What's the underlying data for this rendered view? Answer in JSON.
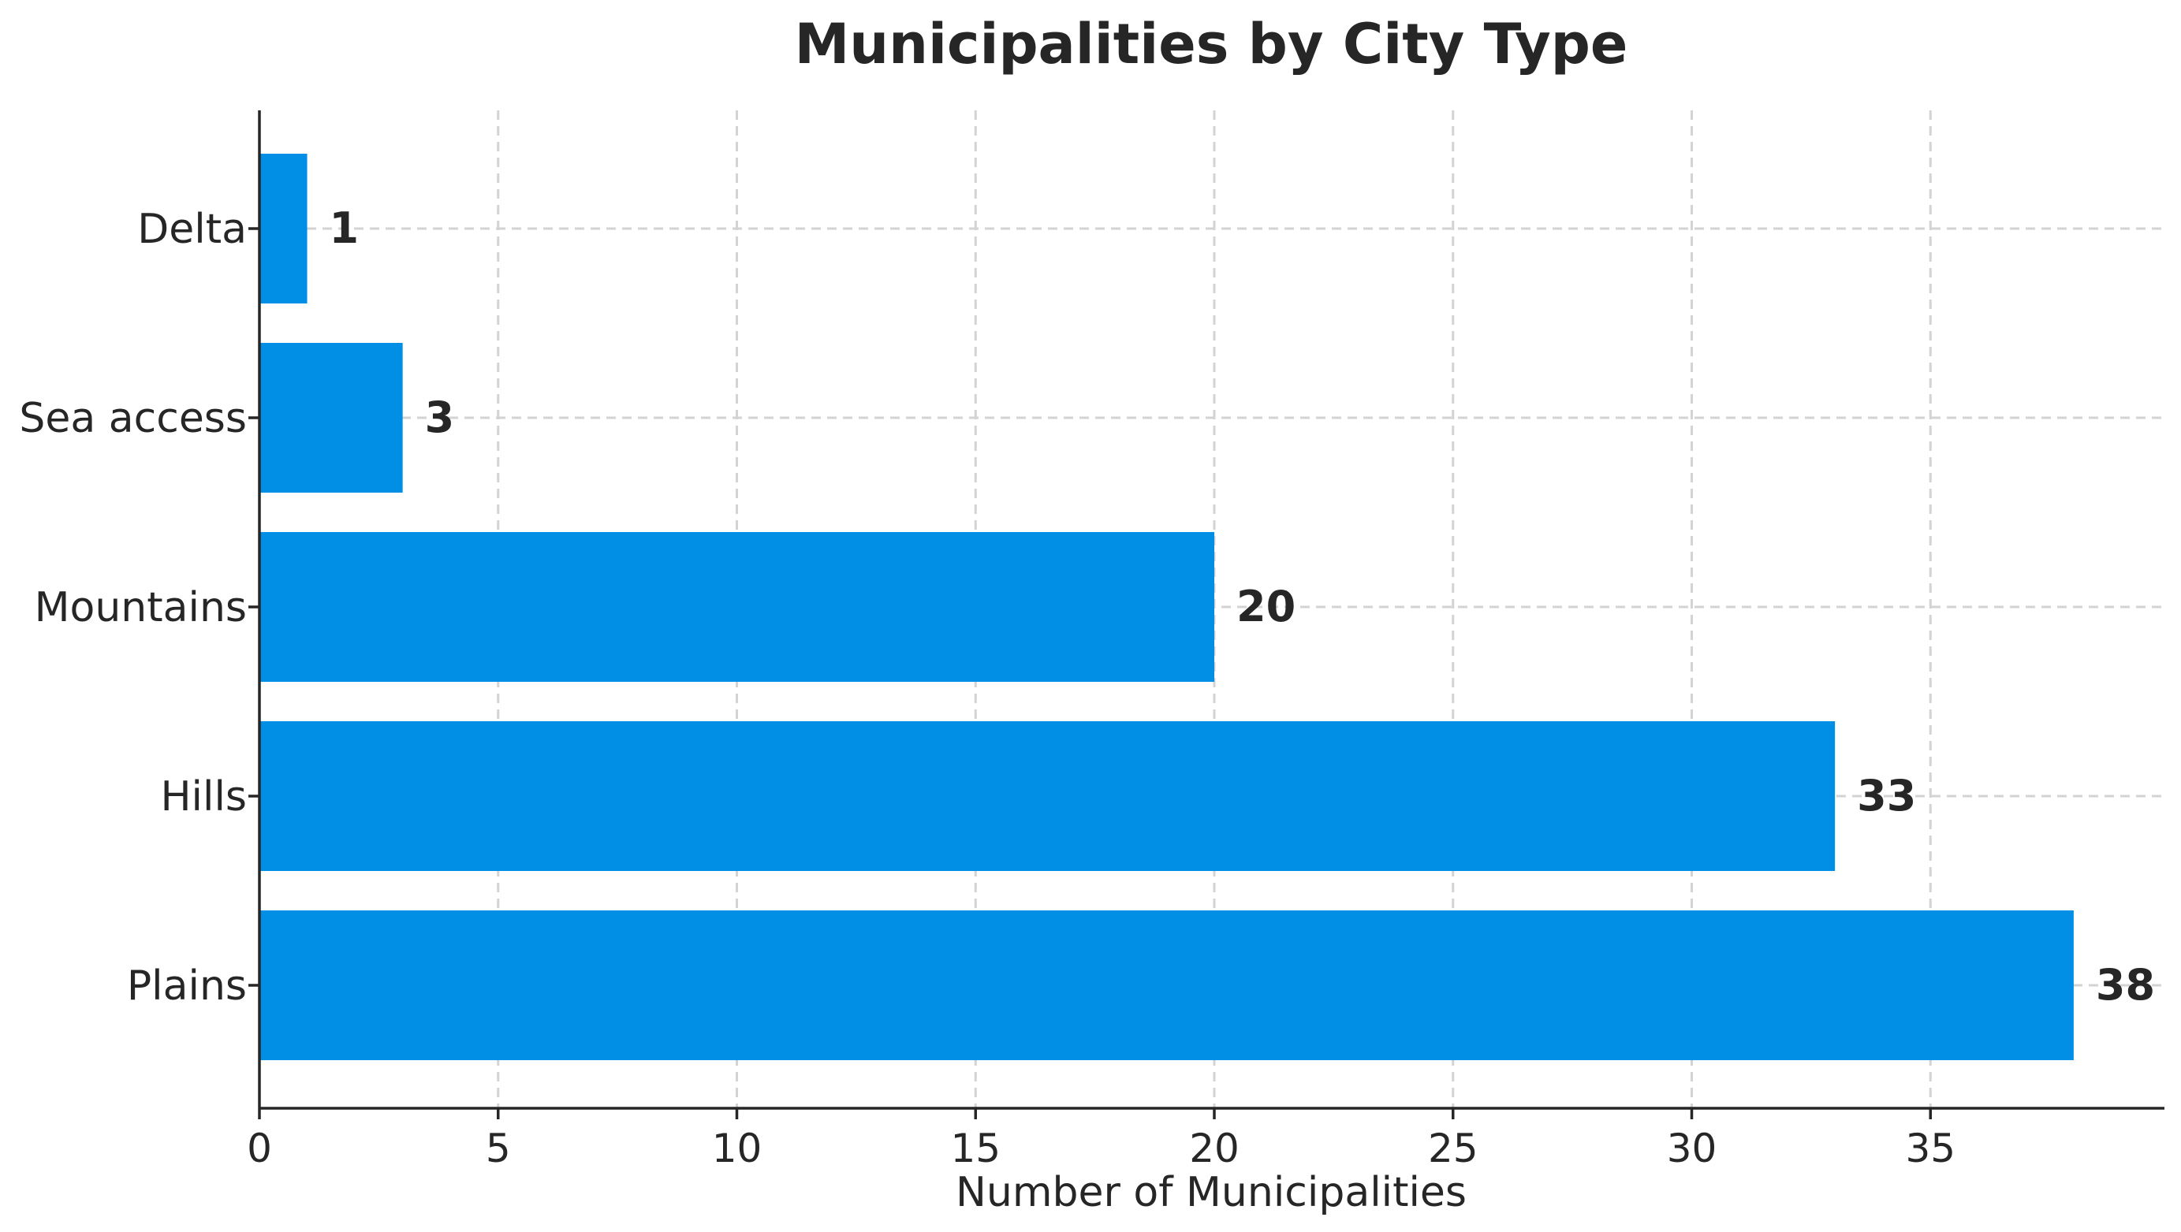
{
  "chart_data": {
    "type": "bar",
    "orientation": "horizontal",
    "title": "Municipalities by City Type",
    "xlabel": "Number of Municipalities",
    "ylabel": "",
    "categories": [
      "Plains",
      "Hills",
      "Mountains",
      "Sea access",
      "Delta"
    ],
    "values": [
      38,
      33,
      20,
      3,
      1
    ],
    "xlim": [
      0,
      40
    ],
    "xticks": [
      0,
      5,
      10,
      15,
      20,
      25,
      30,
      35
    ],
    "grid": true,
    "bar_color": "#008fe5",
    "data_labels": true
  }
}
